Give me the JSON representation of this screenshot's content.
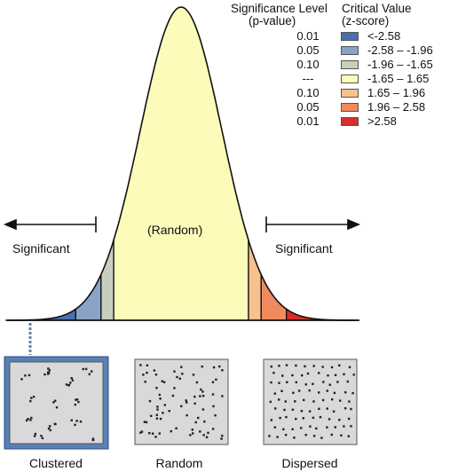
{
  "legend": {
    "p_header": [
      "Significance Level",
      "(p-value)"
    ],
    "z_header": [
      "Critical Value",
      "(z-score)"
    ],
    "rows": [
      {
        "p": "0.01",
        "z": "<-2.58",
        "color": "#4a6fad"
      },
      {
        "p": "0.05",
        "z": "-2.58 – -1.96",
        "color": "#8aa2c4"
      },
      {
        "p": "0.10",
        "z": "-1.96 – -1.65",
        "color": "#c7cebd"
      },
      {
        "p": "---",
        "z": "-1.65 – 1.65",
        "color": "#fdfbba"
      },
      {
        "p": "0.10",
        "z": "1.65 – 1.96",
        "color": "#f6c08f"
      },
      {
        "p": "0.05",
        "z": "1.96 – 2.58",
        "color": "#ef8a5e"
      },
      {
        "p": "0.01",
        "z": ">2.58",
        "color": "#d7302c"
      }
    ]
  },
  "labels": {
    "significant_left": "Significant",
    "significant_right": "Significant",
    "random_center": "(Random)"
  },
  "patterns": [
    {
      "caption": "Clustered",
      "highlighted": true
    },
    {
      "caption": "Random",
      "highlighted": false
    },
    {
      "caption": "Dispersed",
      "highlighted": false
    }
  ]
}
